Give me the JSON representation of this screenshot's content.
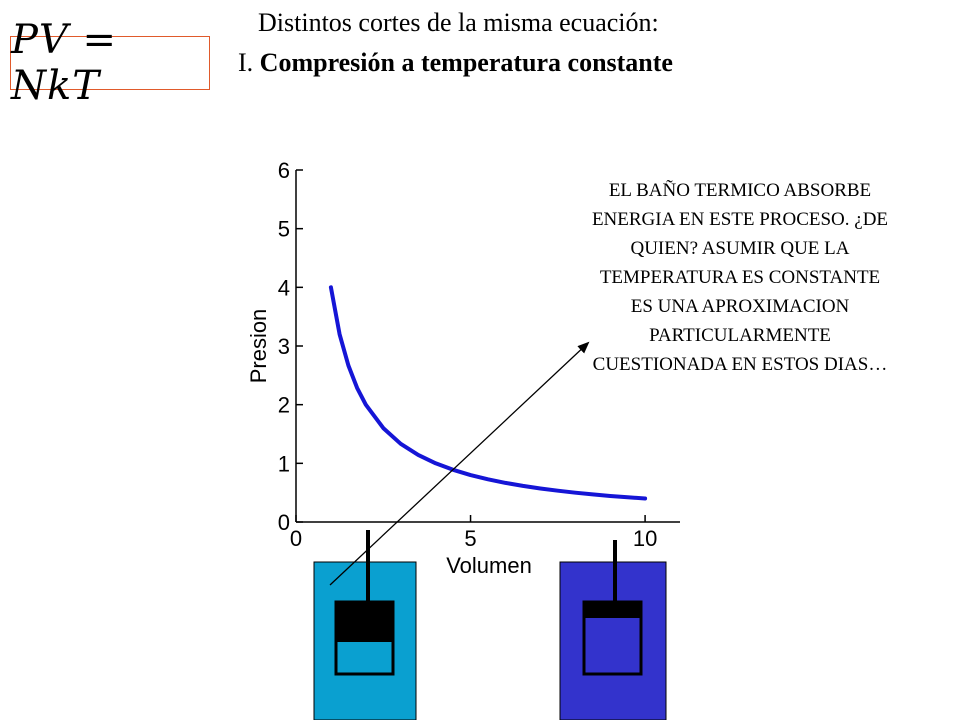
{
  "formula": "PV = NkT",
  "title": {
    "line1": "Distintos cortes de la misma ecuación:",
    "line2_prefix": "I.",
    "line2_bold": "Compresión a temperatura constante"
  },
  "annotation": "EL BAÑO TERMICO ABSORBE ENERGIA EN ESTE PROCESO. ¿DE QUIEN? ASUMIR QUE LA TEMPERATURA ES CONSTANTE ES UNA APROXIMACION PARTICULARMENTE CUESTIONADA EN ESTOS DIAS…",
  "chart_data": {
    "type": "line",
    "title": "",
    "xlabel": "Volumen",
    "ylabel": "Presion",
    "xlim": [
      0,
      11
    ],
    "ylim": [
      0,
      6
    ],
    "xticks": [
      0,
      5,
      10
    ],
    "yticks": [
      0,
      1,
      2,
      3,
      4,
      5,
      6
    ],
    "grid": false,
    "series": [
      {
        "x": [
          1,
          1.25,
          1.5,
          1.75,
          2,
          2.5,
          3,
          3.5,
          4,
          4.5,
          5,
          5.5,
          6,
          6.5,
          7,
          7.5,
          8,
          8.5,
          9,
          9.5,
          10
        ],
        "y": [
          4,
          3.2,
          2.667,
          2.286,
          2,
          1.6,
          1.333,
          1.143,
          1,
          0.889,
          0.8,
          0.727,
          0.667,
          0.615,
          0.571,
          0.533,
          0.5,
          0.471,
          0.444,
          0.421,
          0.4
        ],
        "color": "#1515d6"
      }
    ]
  },
  "colors": {
    "bath_light": "#0aa0d0",
    "bath_dark": "#3333cc",
    "curve": "#1515d6",
    "formula_border": "#e05a2b"
  },
  "icons": {
    "cylinder_left": "piston-cylinder-compressed-icon",
    "cylinder_right": "piston-cylinder-expanded-icon",
    "arrow": "arrow-icon"
  }
}
